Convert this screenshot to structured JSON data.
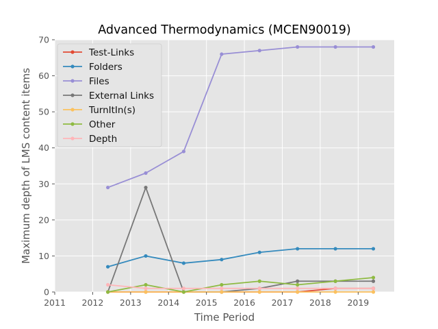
{
  "chart_data": {
    "type": "line",
    "title": "Advanced Thermodynamics (MCEN90019)",
    "xlabel": "Time Period",
    "ylabel": "Maximum depth of LMS content items",
    "xlim": [
      2011.0,
      2019.95
    ],
    "ylim": [
      0,
      70
    ],
    "xticks": [
      2011,
      2012,
      2013,
      2014,
      2015,
      2016,
      2017,
      2018,
      2019
    ],
    "yticks": [
      0,
      10,
      20,
      30,
      40,
      50,
      60,
      70
    ],
    "grid": true,
    "legend_position": "top-left",
    "x": [
      2012.4,
      2013.4,
      2014.4,
      2015.4,
      2016.4,
      2017.4,
      2018.4,
      2019.4
    ],
    "series": [
      {
        "name": "Test-Links",
        "color": "#e24a33",
        "values": [
          0,
          0,
          0,
          0,
          0,
          0,
          1,
          1
        ]
      },
      {
        "name": "Folders",
        "color": "#348abd",
        "values": [
          7,
          10,
          8,
          9,
          11,
          12,
          12,
          12
        ]
      },
      {
        "name": "Files",
        "color": "#988ed5",
        "values": [
          29,
          33,
          39,
          66,
          67,
          68,
          68,
          68
        ]
      },
      {
        "name": "External Links",
        "color": "#777777",
        "values": [
          0,
          29,
          0,
          0,
          1,
          3,
          3,
          3
        ]
      },
      {
        "name": "TurnItIn(s)",
        "color": "#fbc15e",
        "values": [
          0,
          0,
          0,
          0,
          0,
          0,
          0,
          0
        ]
      },
      {
        "name": "Other",
        "color": "#8eba42",
        "values": [
          0,
          2,
          0,
          2,
          3,
          2,
          3,
          4
        ]
      },
      {
        "name": "Depth",
        "color": "#ffb5b8",
        "values": [
          2,
          1,
          1,
          1,
          1,
          1,
          1,
          1
        ]
      }
    ]
  }
}
